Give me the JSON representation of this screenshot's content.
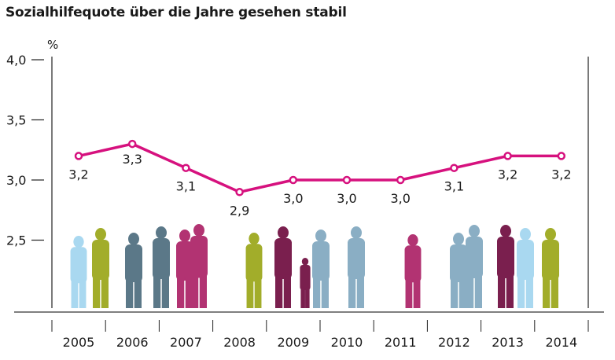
{
  "chart_data": {
    "type": "line",
    "title": "Sozialhilfequote über die Jahre gesehen stabil",
    "ylabel": "%",
    "xlabel": "",
    "categories": [
      "2005",
      "2006",
      "2007",
      "2008",
      "2009",
      "2010",
      "2011",
      "2012",
      "2013",
      "2014"
    ],
    "values": [
      3.2,
      3.3,
      3.1,
      2.9,
      3.0,
      3.0,
      3.0,
      3.1,
      3.2,
      3.2
    ],
    "value_labels": [
      "3,2",
      "3,3",
      "3,1",
      "2,9",
      "3,0",
      "3,0",
      "3,0",
      "3,1",
      "3,2",
      "3,2"
    ],
    "ylim": [
      2.0,
      4.0
    ],
    "yticks": [
      4.0,
      3.5,
      3.0,
      2.5
    ],
    "ytick_labels": [
      "4,0",
      "3,5",
      "3,0",
      "2,5"
    ],
    "grid": false,
    "line_color": "#d6117e"
  }
}
